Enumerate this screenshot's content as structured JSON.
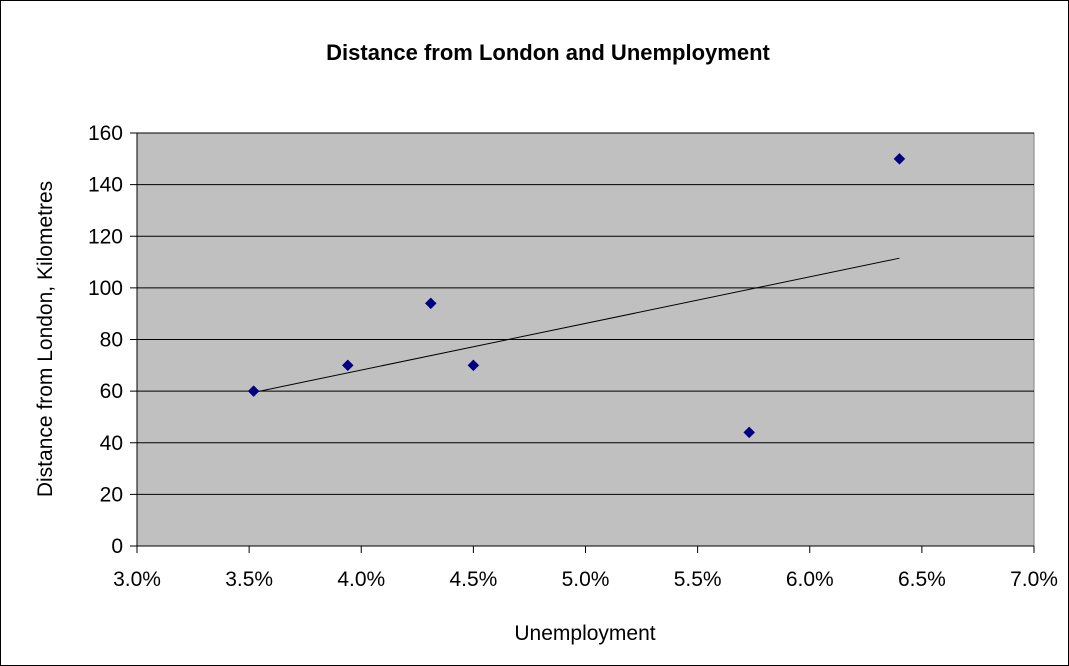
{
  "chart_data": {
    "type": "scatter",
    "title": "Distance from London and Unemployment",
    "xlabel": "Unemployment",
    "ylabel": "Distance from London, Kilometres",
    "xlim": [
      0.03,
      0.07
    ],
    "ylim": [
      0,
      160
    ],
    "x_ticks": [
      "3.0%",
      "3.5%",
      "4.0%",
      "4.5%",
      "5.0%",
      "5.5%",
      "6.0%",
      "6.5%",
      "7.0%"
    ],
    "y_ticks": [
      "0",
      "20",
      "40",
      "60",
      "80",
      "100",
      "120",
      "140",
      "160"
    ],
    "grid": "horizontal",
    "legend": "none",
    "series": [
      {
        "points": [
          {
            "x": 0.0352,
            "y": 60
          },
          {
            "x": 0.0394,
            "y": 70
          },
          {
            "x": 0.0431,
            "y": 94
          },
          {
            "x": 0.045,
            "y": 70
          },
          {
            "x": 0.0573,
            "y": 44
          },
          {
            "x": 0.064,
            "y": 150
          }
        ],
        "color": "#000080"
      }
    ],
    "trendline": {
      "type": "linear",
      "points": [
        {
          "x": 0.0352,
          "y": 59.5
        },
        {
          "x": 0.064,
          "y": 111.5
        }
      ],
      "color": "#000000"
    },
    "plot_background": "#c0c0c0",
    "grid_color": "#000000"
  }
}
